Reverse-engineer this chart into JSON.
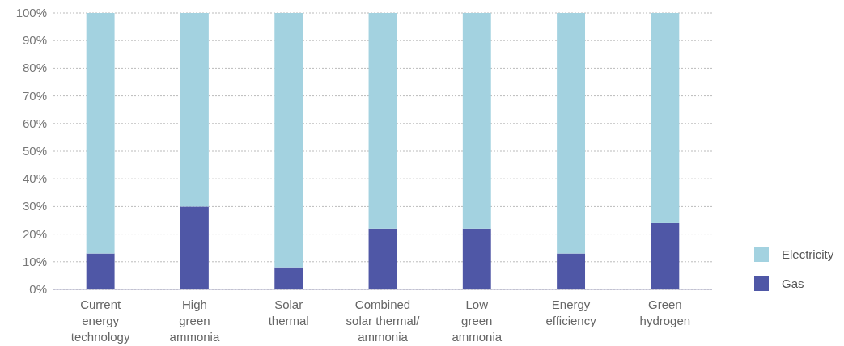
{
  "chart_data": {
    "type": "bar",
    "stacked": true,
    "categories": [
      "Current\nenergy\ntechnology",
      "High\ngreen\nammonia",
      "Solar\nthermal",
      "Combined\nsolar thermal/\nammonia",
      "Low\ngreen\nammonia",
      "Energy\nefficiency",
      "Green\nhydrogen"
    ],
    "series": [
      {
        "name": "Gas",
        "color": "#4f57a6",
        "values": [
          13,
          30,
          8,
          22,
          22,
          13,
          24
        ]
      },
      {
        "name": "Electricity",
        "color": "#a3d2e0",
        "values": [
          87,
          70,
          92,
          78,
          78,
          87,
          76
        ]
      }
    ],
    "ylim": [
      0,
      100
    ],
    "yticks": [
      {
        "value": 0,
        "label": "0%"
      },
      {
        "value": 10,
        "label": "10%"
      },
      {
        "value": 20,
        "label": "20%"
      },
      {
        "value": 30,
        "label": "30%"
      },
      {
        "value": 40,
        "label": "40%"
      },
      {
        "value": 50,
        "label": "50%"
      },
      {
        "value": 60,
        "label": "60%"
      },
      {
        "value": 70,
        "label": "70%"
      },
      {
        "value": 80,
        "label": "80%"
      },
      {
        "value": 90,
        "label": "90%"
      },
      {
        "value": 100,
        "label": "100%"
      }
    ],
    "grid": "y",
    "legend": "bottom right"
  }
}
